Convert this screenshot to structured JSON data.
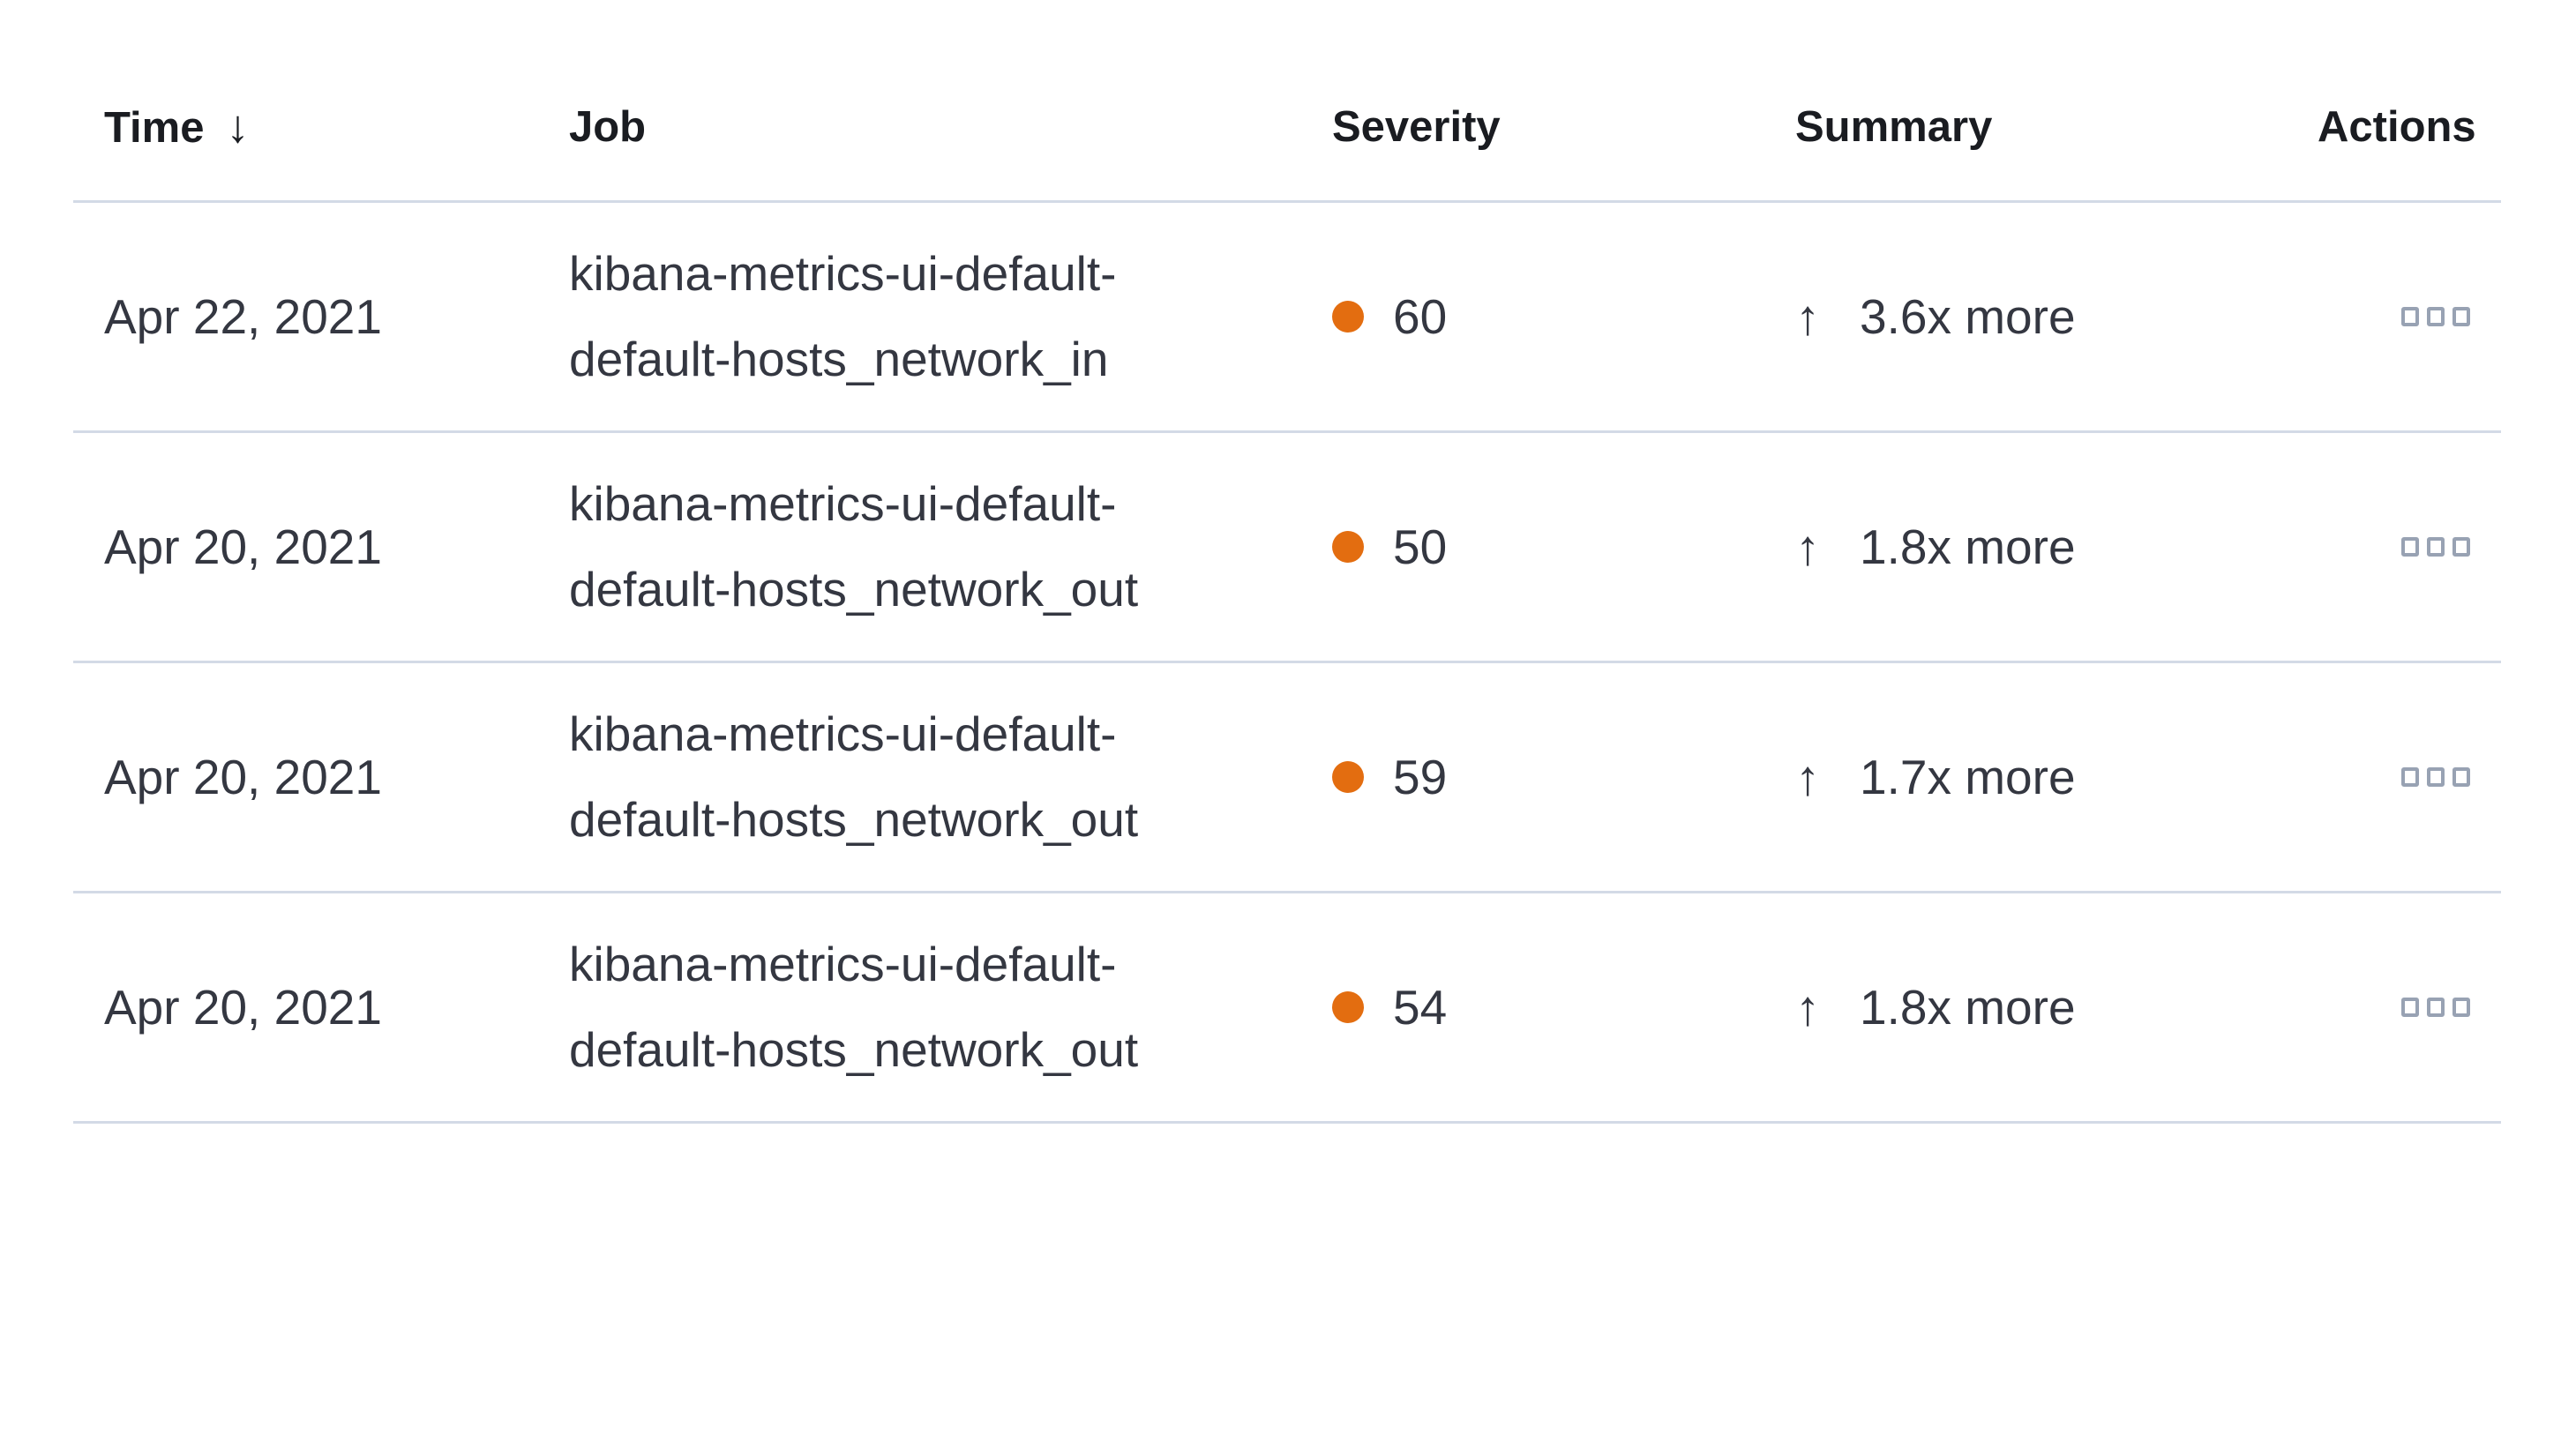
{
  "table": {
    "columns": [
      {
        "label": "Time",
        "sorted": "descending"
      },
      {
        "label": "Job"
      },
      {
        "label": "Severity"
      },
      {
        "label": "Summary"
      },
      {
        "label": "Actions"
      }
    ],
    "rows": [
      {
        "time": "Apr 22, 2021",
        "job_lines": [
          "kibana-metrics-ui-default-",
          "default-hosts_network_in"
        ],
        "severity": "60",
        "summary": "3.6x more",
        "direction": "up"
      },
      {
        "time": "Apr 20, 2021",
        "job_lines": [
          "kibana-metrics-ui-default-",
          "default-hosts_network_out"
        ],
        "severity": "50",
        "summary": "1.8x more",
        "direction": "up"
      },
      {
        "time": "Apr 20, 2021",
        "job_lines": [
          "kibana-metrics-ui-default-",
          "default-hosts_network_out"
        ],
        "severity": "59",
        "summary": "1.7x more",
        "direction": "up"
      },
      {
        "time": "Apr 20, 2021",
        "job_lines": [
          "kibana-metrics-ui-default-",
          "default-hosts_network_out"
        ],
        "severity": "54",
        "summary": "1.8x more",
        "direction": "up"
      }
    ]
  },
  "glyphs": {
    "sort_descending": "↓",
    "increase_arrow": "↑"
  },
  "colors": {
    "severity_dot": "#E36D10",
    "divider": "#D3DAE6",
    "header_text": "#1A1C21",
    "body_text": "#343741",
    "actions_icon": "#98A2B3",
    "background": "#FFFFFF"
  }
}
